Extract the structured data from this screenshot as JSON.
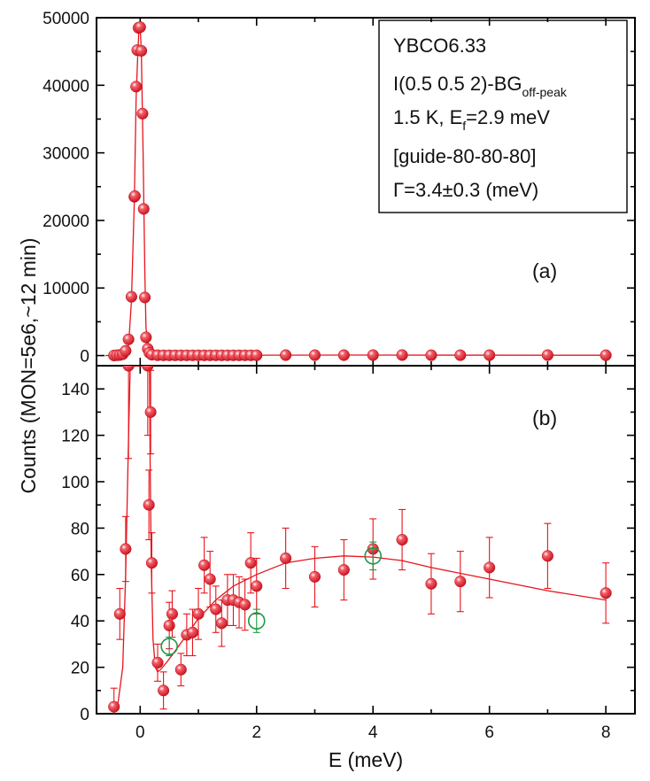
{
  "figure": {
    "xlabel": "E (meV)",
    "ylabel": "Counts (MON=5e6,~12 min)",
    "info_box": {
      "line1": "YBCO6.33",
      "line2_main": "I(0.5 0.5 2)-BG",
      "line2_sub": "off-peak",
      "line3_pre": "1.5 K, E",
      "line3_sub": "f",
      "line3_post": "=2.9 meV",
      "line4": "[guide-80-80-80]",
      "line5": "Γ=3.4±0.3 (meV)"
    }
  },
  "colors": {
    "series": "#e8141c",
    "open_points": "#1a9a46",
    "axis": "#000000"
  },
  "chart_data": [
    {
      "panel_label": "(a)",
      "type": "scatter",
      "xlim": [
        -0.75,
        8.5
      ],
      "ylim": [
        -1500,
        50000
      ],
      "xticks": [
        0,
        2,
        4,
        6,
        8
      ],
      "xtick_labels": [
        "0",
        "2",
        "4",
        "6",
        "8"
      ],
      "yticks": [
        0,
        10000,
        20000,
        30000,
        40000,
        50000
      ],
      "ytick_labels": [
        "0",
        "10000",
        "20000",
        "30000",
        "40000",
        "50000"
      ],
      "series": [
        {
          "marker": "filled-circle",
          "x": [
            -0.45,
            -0.4,
            -0.35,
            -0.3,
            -0.25,
            -0.2,
            -0.15,
            -0.1,
            -0.09,
            -0.07,
            -0.05,
            -0.03,
            0.0,
            0.02,
            0.04,
            0.06,
            0.08,
            0.1,
            0.13,
            0.16,
            0.2,
            0.3,
            0.4,
            0.5,
            0.6,
            0.7,
            0.8,
            0.9,
            1.0,
            1.1,
            1.2,
            1.3,
            1.4,
            1.5,
            1.6,
            1.7,
            1.8,
            1.9,
            2.0,
            2.5,
            3.0,
            3.5,
            4.0,
            4.5,
            5.0,
            5.5,
            6.0,
            7.0,
            8.0
          ],
          "y": [
            10,
            50,
            80,
            200,
            700,
            2400,
            8700,
            23500,
            23600,
            39800,
            45200,
            48500,
            48600,
            45100,
            35800,
            21700,
            8600,
            2700,
            1000,
            400,
            130,
            50,
            40,
            40,
            40,
            40,
            40,
            40,
            40,
            40,
            40,
            40,
            40,
            40,
            40,
            40,
            40,
            40,
            40,
            67,
            59,
            62,
            71,
            75,
            56,
            57,
            63,
            68,
            52
          ]
        }
      ],
      "fit_curve": {
        "x": [
          -0.6,
          -0.3,
          -0.2,
          -0.15,
          -0.1,
          -0.07,
          -0.04,
          -0.02,
          0.0,
          0.02,
          0.05,
          0.08,
          0.1,
          0.15,
          0.2,
          0.3,
          0.5,
          1.0,
          2.0,
          4.0,
          8.0
        ],
        "y": [
          0,
          150,
          1500,
          8000,
          23000,
          38000,
          45000,
          48500,
          48700,
          45000,
          30000,
          12000,
          4000,
          800,
          150,
          30,
          30,
          45,
          60,
          68,
          49
        ]
      }
    },
    {
      "panel_label": "(b)",
      "type": "scatter",
      "xlim": [
        -0.75,
        8.5
      ],
      "ylim": [
        0,
        150
      ],
      "xticks": [
        0,
        2,
        4,
        6,
        8
      ],
      "xtick_labels": [
        "0",
        "2",
        "4",
        "6",
        "8"
      ],
      "yticks": [
        0,
        20,
        40,
        60,
        80,
        100,
        120,
        140
      ],
      "ytick_labels": [
        "0",
        "20",
        "40",
        "60",
        "80",
        "100",
        "120",
        "140"
      ],
      "series": [
        {
          "marker": "filled-circle",
          "x": [
            -0.45,
            -0.35,
            -0.25,
            -0.2,
            0.13,
            0.15,
            0.18,
            0.2,
            0.3,
            0.4,
            0.5,
            0.55,
            0.7,
            0.8,
            0.9,
            1.0,
            1.1,
            1.2,
            1.3,
            1.4,
            1.5,
            1.6,
            1.7,
            1.8,
            1.9,
            2.0,
            2.5,
            3.0,
            3.5,
            4.0,
            4.5,
            5.0,
            5.5,
            6.0,
            7.0,
            8.0
          ],
          "y": [
            3,
            43,
            71,
            150,
            150,
            90,
            130,
            65,
            22,
            10,
            38,
            43,
            19,
            34,
            35,
            43,
            64,
            58,
            45,
            39,
            49,
            49,
            48,
            47,
            65,
            55,
            67,
            59,
            62,
            71,
            75,
            56,
            57,
            63,
            68,
            52
          ],
          "yerr": [
            8,
            11,
            14,
            40,
            30,
            15,
            18,
            13,
            8,
            8,
            10,
            10,
            7,
            9,
            10,
            11,
            12,
            12,
            10,
            10,
            11,
            11,
            11,
            11,
            13,
            12,
            13,
            13,
            13,
            13,
            13,
            13,
            13,
            13,
            14,
            13
          ]
        },
        {
          "marker": "open-circle",
          "x": [
            0.5,
            2.0,
            4.0
          ],
          "y": [
            29,
            40,
            68
          ],
          "yerr": [
            4,
            5,
            6
          ]
        }
      ],
      "fit_curve": {
        "x": [
          -0.4,
          -0.3,
          -0.25,
          -0.2,
          -0.17,
          -0.15,
          0.16,
          0.17,
          0.19,
          0.22,
          0.26,
          0.3,
          0.35,
          0.45,
          0.6,
          0.8,
          1.0,
          1.3,
          1.6,
          2.0,
          2.5,
          3.0,
          3.5,
          4.0,
          4.5,
          5.0,
          6.0,
          7.0,
          8.0
        ],
        "y": [
          1,
          20,
          60,
          120,
          150,
          150,
          150,
          110,
          65,
          32,
          20,
          18,
          19,
          22,
          27,
          34,
          41,
          49,
          55,
          60,
          65,
          67,
          68,
          67.5,
          66,
          63,
          58,
          53,
          49
        ]
      }
    }
  ]
}
